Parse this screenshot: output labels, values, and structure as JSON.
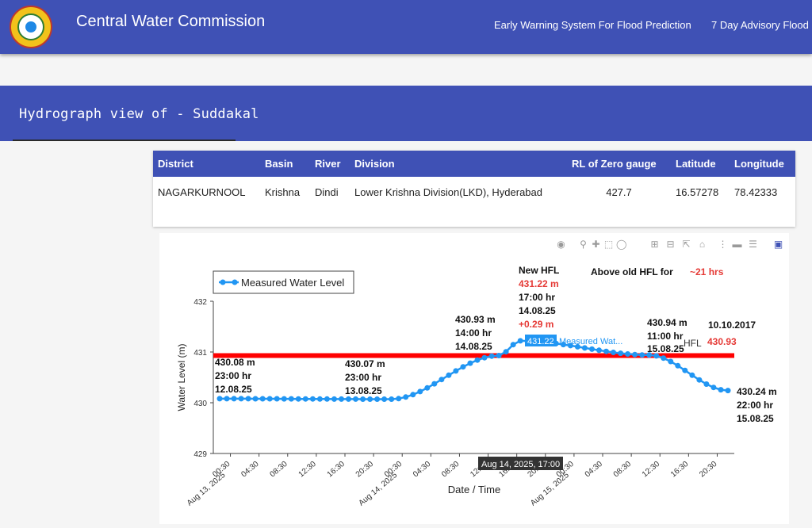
{
  "header": {
    "app_title": "Central Water Commission",
    "nav": [
      "Early Warning System For Flood Prediction",
      "7 Day Advisory Flood"
    ]
  },
  "banner": {
    "title": "Hydrograph view of - Suddakal"
  },
  "station_table": {
    "headers": [
      "District",
      "Basin",
      "River",
      "Division",
      "RL of Zero gauge",
      "Latitude",
      "Longitude"
    ],
    "row": [
      "NAGARKURNOOL",
      "Krishna",
      "Dindi",
      "Lower Krishna Division(LKD), Hyderabad",
      "427.7",
      "16.57278",
      "78.42333"
    ]
  },
  "toolbar_icons": [
    "camera-icon",
    "zoom-icon",
    "pan-icon",
    "box-select-icon",
    "lasso-icon",
    "zoom-in-icon",
    "zoom-out-icon",
    "autoscale-icon",
    "reset-axes-icon",
    "spike-lines-icon",
    "hover-closest-icon",
    "hover-compare-icon",
    "plotly-logo-icon"
  ],
  "chart_data": {
    "type": "line",
    "xlabel": "Date / Time",
    "ylabel": "Water Level (m)",
    "ylim": [
      429,
      432
    ],
    "yticks": [
      429,
      430,
      431,
      432
    ],
    "x_tick_labels": [
      "00:30",
      "04:30",
      "08:30",
      "12:30",
      "16:30",
      "20:30",
      "00:30",
      "04:30",
      "08:30",
      "12:30",
      "16:30",
      "20:30",
      "00:30",
      "04:30",
      "08:30",
      "12:30",
      "16:30",
      "20:30"
    ],
    "x_date_labels": [
      "Aug 13, 2025",
      "Aug 14, 2025",
      "Aug 15, 2025"
    ],
    "legend": "Measured Water Level",
    "series": [
      {
        "name": "Measured Water Level",
        "color": "#2196f3",
        "x": [
          "12.08 23:00",
          "13.08 23:00",
          "14.08 14:00",
          "14.08 17:00",
          "15.08 11:00",
          "15.08 22:00"
        ],
        "y": [
          430.08,
          430.07,
          430.93,
          431.22,
          430.94,
          430.24
        ]
      }
    ],
    "hfl": {
      "label": "HFL",
      "value": 430.93,
      "date": "10.10.2017",
      "color": "#ff0000"
    },
    "annotations": [
      {
        "lines": [
          "430.08 m",
          "23:00 hr",
          "12.08.25"
        ]
      },
      {
        "lines": [
          "430.07 m",
          "23:00 hr",
          "13.08.25"
        ]
      },
      {
        "lines": [
          "430.93 m",
          "14:00 hr",
          "14.08.25"
        ]
      },
      {
        "lines": [
          "New HFL",
          "431.22 m",
          "17:00 hr",
          "14.08.25",
          "+0.29 m"
        ]
      },
      {
        "lines": [
          "430.94 m",
          "11:00 hr",
          "15.08.25"
        ]
      },
      {
        "lines": [
          "430.24 m",
          "22:00 hr",
          "15.08.25"
        ]
      }
    ],
    "above_hfl_text": "Above old HFL for",
    "above_hfl_value": "~21 hrs",
    "hover_value": "431.22",
    "hover_series": "Measured Wat...",
    "hover_x_label": "Aug 14, 2025, 17:00"
  }
}
